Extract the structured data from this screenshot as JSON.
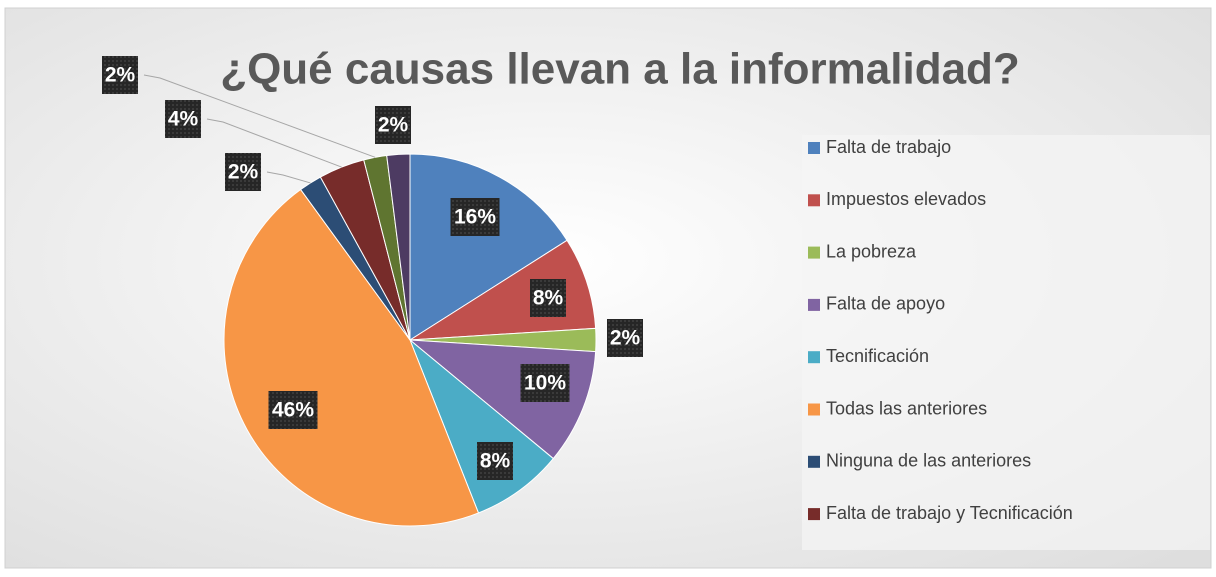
{
  "chart_data": {
    "type": "pie",
    "title": "¿Qué causas llevan a la informalidad?",
    "categories": [
      "Falta de trabajo",
      "Impuestos elevados",
      "La pobreza",
      "Falta de apoyo",
      "Tecnificación",
      "Todas las anteriores",
      "Ninguna de las anteriores",
      "Falta de trabajo y Tecnificación",
      null,
      null
    ],
    "values": [
      16,
      8,
      2,
      10,
      8,
      46,
      2,
      4,
      2,
      2
    ],
    "value_labels": [
      "16%",
      "8%",
      "2%",
      "10%",
      "8%",
      "46%",
      "2%",
      "4%",
      "2%",
      "2%"
    ],
    "colors": [
      "#4f81bd",
      "#c0504d",
      "#9bbb59",
      "#8064a2",
      "#4bacc6",
      "#f79646",
      "#2c4d75",
      "#772c2a",
      "#5f7530",
      "#4d3b62"
    ],
    "legend": "right"
  }
}
